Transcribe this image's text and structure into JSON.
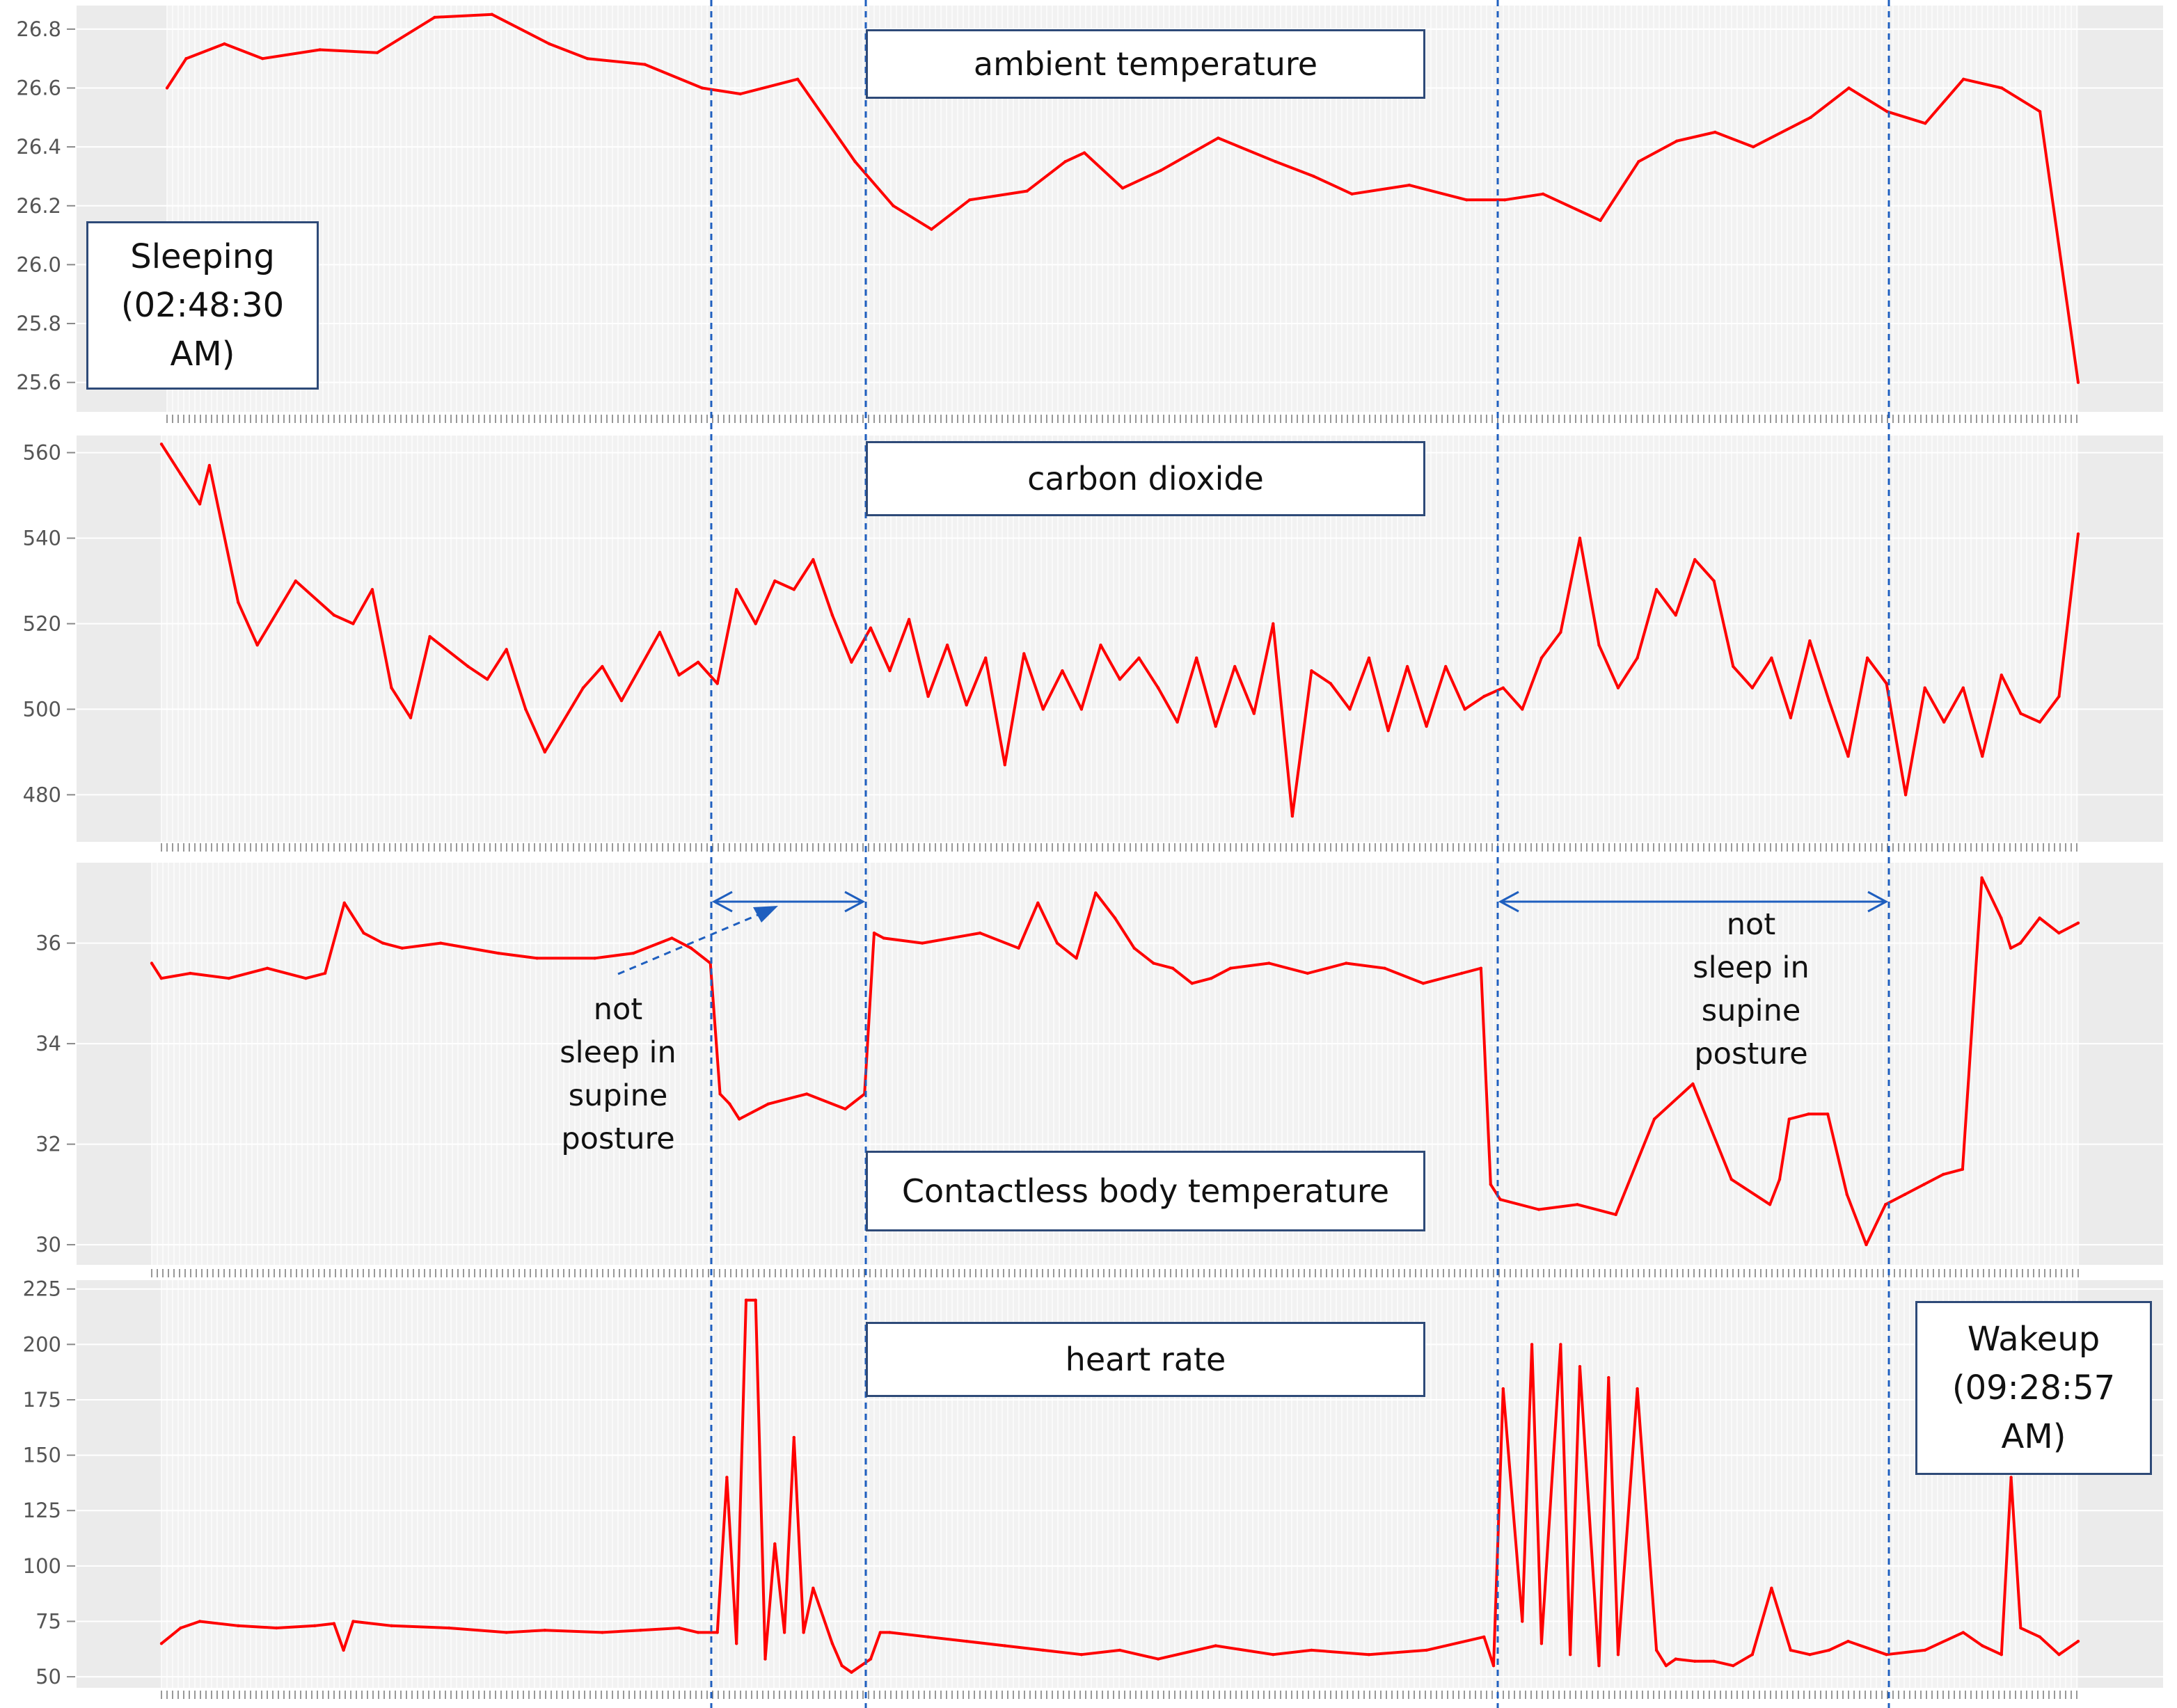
{
  "colors": {
    "series": "#ff0000",
    "marker_line": "#1f5fbf",
    "panel_bg": "#ebebeb",
    "plot_bg": "#f2f2f2",
    "grid": "#ffffff",
    "box_border": "#2e4a78"
  },
  "chart_data": [
    {
      "type": "line",
      "title": "ambient temperature",
      "yticks": [
        "25.6",
        "25.8",
        "26.0",
        "26.2",
        "26.4",
        "26.6",
        "26.8"
      ],
      "ylim": [
        25.5,
        26.88
      ],
      "x_domain": [
        0,
        1
      ],
      "series": [
        {
          "x": [
            0,
            0.01,
            0.03,
            0.05,
            0.08,
            0.11,
            0.14,
            0.17,
            0.2,
            0.22,
            0.25,
            0.28,
            0.3,
            0.33,
            0.36,
            0.38,
            0.4,
            0.42,
            0.45,
            0.47,
            0.48,
            0.5,
            0.52,
            0.55,
            0.58,
            0.6,
            0.62,
            0.65,
            0.68,
            0.7,
            0.72,
            0.75,
            0.77,
            0.79,
            0.81,
            0.83,
            0.86,
            0.88,
            0.9,
            0.92,
            0.94,
            0.96,
            0.98,
            1.0
          ],
          "y": [
            26.6,
            26.7,
            26.75,
            26.7,
            26.73,
            26.72,
            26.84,
            26.85,
            26.75,
            26.7,
            26.68,
            26.6,
            26.58,
            26.63,
            26.35,
            26.2,
            26.12,
            26.22,
            26.25,
            26.35,
            26.38,
            26.26,
            26.32,
            26.43,
            26.35,
            26.3,
            26.24,
            26.27,
            26.22,
            26.22,
            26.24,
            26.15,
            26.35,
            26.42,
            26.45,
            26.4,
            26.5,
            26.6,
            26.52,
            26.48,
            26.63,
            26.6,
            26.52,
            25.6
          ]
        }
      ]
    },
    {
      "type": "line",
      "title": "carbon dioxide",
      "yticks": [
        "480",
        "500",
        "520",
        "540",
        "560"
      ],
      "ylim": [
        469,
        564
      ],
      "x_domain": [
        0,
        1
      ],
      "series": [
        {
          "x": [
            0,
            0.01,
            0.02,
            0.025,
            0.04,
            0.05,
            0.07,
            0.09,
            0.1,
            0.11,
            0.12,
            0.13,
            0.14,
            0.16,
            0.17,
            0.18,
            0.19,
            0.2,
            0.22,
            0.23,
            0.24,
            0.26,
            0.27,
            0.28,
            0.29,
            0.3,
            0.31,
            0.32,
            0.33,
            0.34,
            0.35,
            0.36,
            0.37,
            0.38,
            0.39,
            0.4,
            0.41,
            0.42,
            0.43,
            0.44,
            0.45,
            0.46,
            0.47,
            0.48,
            0.49,
            0.5,
            0.51,
            0.52,
            0.53,
            0.54,
            0.55,
            0.56,
            0.57,
            0.58,
            0.59,
            0.6,
            0.61,
            0.62,
            0.63,
            0.64,
            0.65,
            0.66,
            0.67,
            0.68,
            0.69,
            0.7,
            0.71,
            0.72,
            0.73,
            0.74,
            0.75,
            0.76,
            0.77,
            0.78,
            0.79,
            0.8,
            0.81,
            0.82,
            0.83,
            0.84,
            0.85,
            0.86,
            0.87,
            0.88,
            0.89,
            0.9,
            0.91,
            0.92,
            0.93,
            0.94,
            0.95,
            0.96,
            0.97,
            0.98,
            0.99,
            1.0
          ],
          "y": [
            562,
            555,
            548,
            557,
            525,
            515,
            530,
            522,
            520,
            528,
            505,
            498,
            517,
            510,
            507,
            514,
            500,
            490,
            505,
            510,
            502,
            518,
            508,
            511,
            506,
            528,
            520,
            530,
            528,
            535,
            522,
            511,
            519,
            509,
            521,
            503,
            515,
            501,
            512,
            487,
            513,
            500,
            509,
            500,
            515,
            507,
            512,
            505,
            497,
            512,
            496,
            510,
            499,
            520,
            475,
            509,
            506,
            500,
            512,
            495,
            510,
            496,
            510,
            500,
            503,
            505,
            500,
            512,
            518,
            540,
            515,
            505,
            512,
            528,
            522,
            535,
            530,
            510,
            505,
            512,
            498,
            516,
            502,
            489,
            512,
            506,
            480,
            505,
            497,
            505,
            489,
            508,
            499,
            497,
            503,
            541
          ]
        }
      ]
    },
    {
      "type": "line",
      "title": "Contactless body temperature",
      "yticks": [
        "30",
        "32",
        "34",
        "36"
      ],
      "ylim": [
        29.6,
        37.6
      ],
      "x_domain": [
        0,
        1
      ],
      "series": [
        {
          "x": [
            0,
            0.005,
            0.02,
            0.04,
            0.06,
            0.08,
            0.09,
            0.1,
            0.11,
            0.12,
            0.13,
            0.15,
            0.18,
            0.2,
            0.23,
            0.25,
            0.27,
            0.28,
            0.29,
            0.295,
            0.3,
            0.305,
            0.32,
            0.34,
            0.36,
            0.37,
            0.375,
            0.38,
            0.4,
            0.43,
            0.45,
            0.46,
            0.47,
            0.48,
            0.49,
            0.5,
            0.51,
            0.52,
            0.53,
            0.54,
            0.55,
            0.56,
            0.58,
            0.6,
            0.62,
            0.64,
            0.66,
            0.68,
            0.69,
            0.695,
            0.7,
            0.72,
            0.74,
            0.76,
            0.78,
            0.8,
            0.82,
            0.84,
            0.845,
            0.85,
            0.86,
            0.87,
            0.88,
            0.89,
            0.9,
            0.91,
            0.92,
            0.93,
            0.94,
            0.95,
            0.96,
            0.965,
            0.97,
            0.98,
            0.99,
            1.0
          ],
          "y": [
            35.6,
            35.3,
            35.4,
            35.3,
            35.5,
            35.3,
            35.4,
            36.8,
            36.2,
            36.0,
            35.9,
            36.0,
            35.8,
            35.7,
            35.7,
            35.8,
            36.1,
            35.9,
            35.6,
            33.0,
            32.8,
            32.5,
            32.8,
            33.0,
            32.7,
            33.0,
            36.2,
            36.1,
            36.0,
            36.2,
            35.9,
            36.8,
            36.0,
            35.7,
            37.0,
            36.5,
            35.9,
            35.6,
            35.5,
            35.2,
            35.3,
            35.5,
            35.6,
            35.4,
            35.6,
            35.5,
            35.2,
            35.4,
            35.5,
            31.2,
            30.9,
            30.7,
            30.8,
            30.6,
            32.5,
            33.2,
            31.3,
            30.8,
            31.3,
            32.5,
            32.6,
            32.6,
            31.0,
            30.0,
            30.8,
            31.0,
            31.2,
            31.4,
            31.5,
            37.3,
            36.5,
            35.9,
            36.0,
            36.5,
            36.2,
            36.4
          ]
        }
      ]
    },
    {
      "type": "line",
      "title": "heart rate",
      "yticks": [
        "50",
        "75",
        "100",
        "125",
        "150",
        "175",
        "200",
        "225"
      ],
      "ylim": [
        45,
        229
      ],
      "x_domain": [
        0,
        1
      ],
      "series": [
        {
          "x": [
            0,
            0.01,
            0.02,
            0.04,
            0.06,
            0.08,
            0.09,
            0.095,
            0.1,
            0.12,
            0.15,
            0.18,
            0.2,
            0.23,
            0.25,
            0.27,
            0.28,
            0.29,
            0.295,
            0.3,
            0.305,
            0.31,
            0.315,
            0.32,
            0.325,
            0.33,
            0.335,
            0.34,
            0.35,
            0.355,
            0.36,
            0.37,
            0.375,
            0.38,
            0.4,
            0.42,
            0.44,
            0.46,
            0.48,
            0.5,
            0.52,
            0.55,
            0.58,
            0.6,
            0.63,
            0.66,
            0.69,
            0.695,
            0.7,
            0.71,
            0.715,
            0.72,
            0.73,
            0.735,
            0.74,
            0.75,
            0.755,
            0.76,
            0.77,
            0.78,
            0.785,
            0.79,
            0.8,
            0.81,
            0.82,
            0.83,
            0.84,
            0.85,
            0.86,
            0.87,
            0.88,
            0.9,
            0.92,
            0.94,
            0.95,
            0.96,
            0.965,
            0.97,
            0.98,
            0.99,
            1.0
          ],
          "y": [
            65,
            72,
            75,
            73,
            72,
            73,
            74,
            62,
            75,
            73,
            72,
            70,
            71,
            70,
            71,
            72,
            70,
            70,
            140,
            65,
            220,
            220,
            58,
            110,
            70,
            158,
            70,
            90,
            65,
            55,
            52,
            58,
            70,
            70,
            68,
            66,
            64,
            62,
            60,
            62,
            58,
            64,
            60,
            62,
            60,
            62,
            68,
            55,
            180,
            75,
            200,
            65,
            200,
            60,
            190,
            55,
            185,
            60,
            180,
            62,
            55,
            58,
            57,
            57,
            55,
            60,
            90,
            62,
            60,
            62,
            66,
            60,
            62,
            70,
            64,
            60,
            140,
            72,
            68,
            60,
            66
          ]
        }
      ]
    }
  ],
  "labels": {
    "sleeping_line1": "Sleeping",
    "sleeping_line2": "(02:48:30",
    "sleeping_line3": "AM)",
    "wakeup_line1": "Wakeup",
    "wakeup_line2": "(09:28:57",
    "wakeup_line3": "AM)",
    "note_left": "not\nsleep in\nsupine\nposture",
    "note_right": "not\nsleep in\nsupine\nposture"
  }
}
